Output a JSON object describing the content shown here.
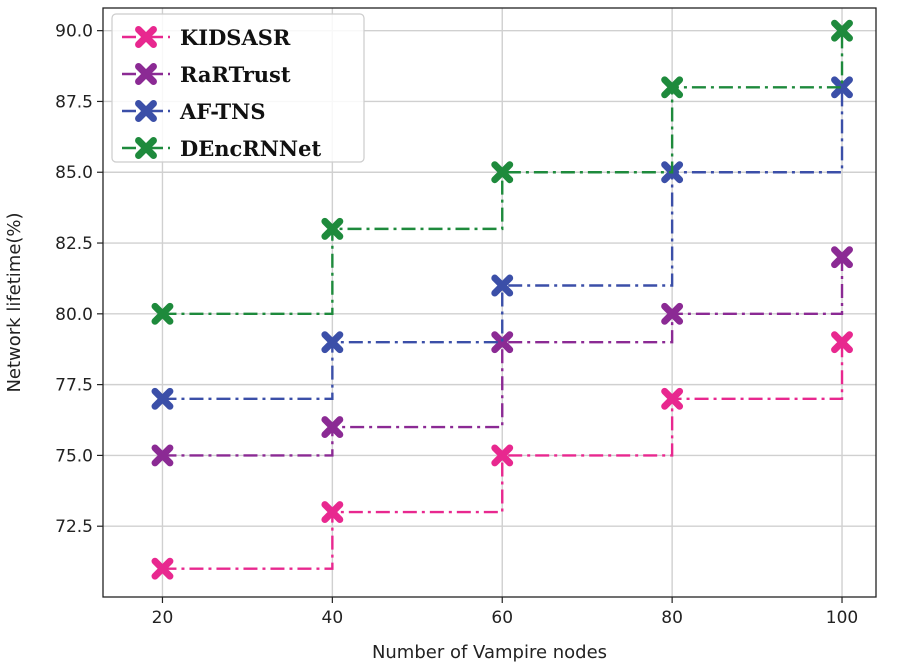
{
  "chart_data": {
    "type": "line",
    "step": "post",
    "x": [
      20,
      40,
      60,
      80,
      100
    ],
    "xlabel": "Number of Vampire nodes",
    "ylabel": "Network lifetime(%)",
    "xticks": [
      20,
      40,
      60,
      80,
      100
    ],
    "yticks": [
      "72.5",
      "75.0",
      "77.5",
      "80.0",
      "82.5",
      "85.0",
      "87.5",
      "90.0"
    ],
    "xlim": [
      13,
      104
    ],
    "ylim": [
      70.0,
      90.8
    ],
    "grid": true,
    "legend_position": "upper-left",
    "series": [
      {
        "name": "KIDSASR",
        "values": [
          71,
          73,
          75,
          77,
          79
        ],
        "color": "#e8288f"
      },
      {
        "name": "RaRTrust",
        "values": [
          75,
          76,
          79,
          80,
          82
        ],
        "color": "#8b2a94"
      },
      {
        "name": "AF-TNS",
        "values": [
          77,
          79,
          81,
          85,
          88
        ],
        "color": "#3b4fa8"
      },
      {
        "name": "DEncRNNet",
        "values": [
          80,
          83,
          85,
          88,
          90
        ],
        "color": "#1e8a3c"
      }
    ]
  }
}
